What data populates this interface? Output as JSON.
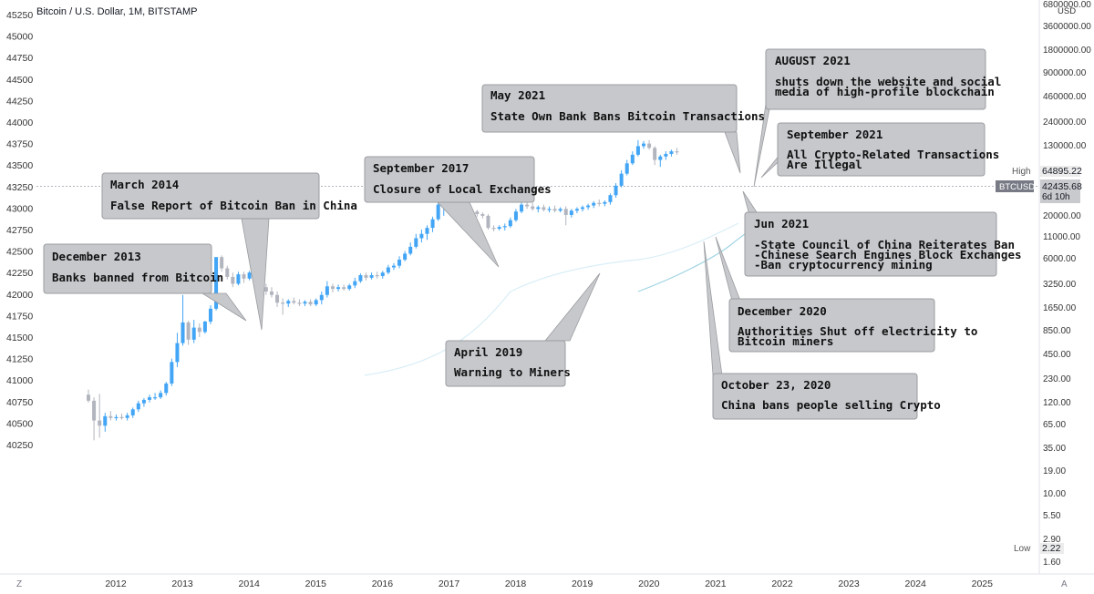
{
  "header": {
    "title": "Bitcoin / U.S. Dollar, 1M, BITSTAMP"
  },
  "chart_data": {
    "type": "candlestick",
    "title": "Bitcoin / U.S. Dollar, 1M, BITSTAMP",
    "symbol": "BTCUSD",
    "interval": "1M",
    "exchange": "BITSTAMP",
    "left_axis_ticks": [
      "45250",
      "45000",
      "44750",
      "44500",
      "44250",
      "44000",
      "43750",
      "43500",
      "43250",
      "43000",
      "42750",
      "42500",
      "42250",
      "42000",
      "41750",
      "41500",
      "41250",
      "41000",
      "40750",
      "40500",
      "40250"
    ],
    "right_axis_unit": "USD",
    "right_axis_ticks": [
      "6800000.00",
      "3600000.00",
      "1800000.00",
      "900000.00",
      "460000.00",
      "240000.00",
      "130000.00",
      "64895.22",
      "42435.68",
      "20000.00",
      "11000.00",
      "6000.00",
      "3250.00",
      "1650.00",
      "850.00",
      "450.00",
      "230.00",
      "120.00",
      "65.00",
      "35.00",
      "19.00",
      "10.00",
      "5.50",
      "2.90",
      "2.22",
      "1.60"
    ],
    "right_axis_scale": "log",
    "x_ticks": [
      "2012",
      "2013",
      "2014",
      "2015",
      "2016",
      "2017",
      "2018",
      "2019",
      "2020",
      "2021",
      "2022",
      "2023",
      "2024",
      "2025"
    ],
    "price_labels": {
      "high_label": "High",
      "high_value": "64895.22",
      "symbol_label": "BTCUSD",
      "last_value": "42435.68",
      "countdown": "6d 10h",
      "low_label": "Low",
      "low_value": "2.22"
    },
    "y_range_left": [
      40150,
      45350
    ],
    "grid": false,
    "candles": [
      {
        "o": 40830,
        "h": 40890,
        "l": 40740,
        "c": 40760
      },
      {
        "o": 40760,
        "h": 40800,
        "l": 40300,
        "c": 40530
      },
      {
        "o": 40530,
        "h": 40840,
        "l": 40330,
        "c": 40470
      },
      {
        "o": 40470,
        "h": 40620,
        "l": 40400,
        "c": 40580
      },
      {
        "o": 40580,
        "h": 40640,
        "l": 40530,
        "c": 40560
      },
      {
        "o": 40560,
        "h": 40600,
        "l": 40530,
        "c": 40570
      },
      {
        "o": 40570,
        "h": 40610,
        "l": 40540,
        "c": 40560
      },
      {
        "o": 40560,
        "h": 40620,
        "l": 40530,
        "c": 40590
      },
      {
        "o": 40590,
        "h": 40680,
        "l": 40560,
        "c": 40660
      },
      {
        "o": 40660,
        "h": 40760,
        "l": 40630,
        "c": 40730
      },
      {
        "o": 40730,
        "h": 40790,
        "l": 40690,
        "c": 40770
      },
      {
        "o": 40770,
        "h": 40830,
        "l": 40740,
        "c": 40800
      },
      {
        "o": 40800,
        "h": 40850,
        "l": 40770,
        "c": 40800
      },
      {
        "o": 40800,
        "h": 40880,
        "l": 40780,
        "c": 40850
      },
      {
        "o": 40850,
        "h": 40980,
        "l": 40820,
        "c": 40960
      },
      {
        "o": 40960,
        "h": 41250,
        "l": 40930,
        "c": 41210
      },
      {
        "o": 41210,
        "h": 41550,
        "l": 41150,
        "c": 41430
      },
      {
        "o": 41430,
        "h": 41990,
        "l": 41400,
        "c": 41670
      },
      {
        "o": 41670,
        "h": 41690,
        "l": 41410,
        "c": 41470
      },
      {
        "o": 41470,
        "h": 41700,
        "l": 41430,
        "c": 41610
      },
      {
        "o": 41610,
        "h": 41660,
        "l": 41500,
        "c": 41560
      },
      {
        "o": 41560,
        "h": 41690,
        "l": 41540,
        "c": 41680
      },
      {
        "o": 41680,
        "h": 41870,
        "l": 41650,
        "c": 41830
      },
      {
        "o": 41830,
        "h": 42430,
        "l": 41810,
        "c": 42430
      },
      {
        "o": 42430,
        "h": 42450,
        "l": 42260,
        "c": 42300
      },
      {
        "o": 42300,
        "h": 42330,
        "l": 42170,
        "c": 42200
      },
      {
        "o": 42200,
        "h": 42250,
        "l": 42080,
        "c": 42120
      },
      {
        "o": 42120,
        "h": 42260,
        "l": 42100,
        "c": 42230
      },
      {
        "o": 42230,
        "h": 42260,
        "l": 42130,
        "c": 42180
      },
      {
        "o": 42180,
        "h": 42270,
        "l": 42160,
        "c": 42250
      },
      {
        "o": 42250,
        "h": 42260,
        "l": 42130,
        "c": 42150
      },
      {
        "o": 42150,
        "h": 42200,
        "l": 42050,
        "c": 42080
      },
      {
        "o": 42080,
        "h": 42120,
        "l": 41990,
        "c": 42030
      },
      {
        "o": 42030,
        "h": 42080,
        "l": 41960,
        "c": 41990
      },
      {
        "o": 41990,
        "h": 42030,
        "l": 41850,
        "c": 41900
      },
      {
        "o": 41900,
        "h": 41950,
        "l": 41760,
        "c": 41890
      },
      {
        "o": 41890,
        "h": 41940,
        "l": 41850,
        "c": 41920
      },
      {
        "o": 41920,
        "h": 41960,
        "l": 41880,
        "c": 41900
      },
      {
        "o": 41900,
        "h": 41940,
        "l": 41860,
        "c": 41890
      },
      {
        "o": 41890,
        "h": 41930,
        "l": 41860,
        "c": 41910
      },
      {
        "o": 41910,
        "h": 41940,
        "l": 41860,
        "c": 41880
      },
      {
        "o": 41880,
        "h": 41950,
        "l": 41860,
        "c": 41930
      },
      {
        "o": 41930,
        "h": 42030,
        "l": 41880,
        "c": 41990
      },
      {
        "o": 41990,
        "h": 42150,
        "l": 41960,
        "c": 42090
      },
      {
        "o": 42090,
        "h": 42120,
        "l": 42020,
        "c": 42060
      },
      {
        "o": 42060,
        "h": 42110,
        "l": 42030,
        "c": 42080
      },
      {
        "o": 42080,
        "h": 42110,
        "l": 42040,
        "c": 42060
      },
      {
        "o": 42060,
        "h": 42120,
        "l": 42040,
        "c": 42100
      },
      {
        "o": 42100,
        "h": 42190,
        "l": 42070,
        "c": 42150
      },
      {
        "o": 42150,
        "h": 42240,
        "l": 42130,
        "c": 42220
      },
      {
        "o": 42220,
        "h": 42250,
        "l": 42160,
        "c": 42190
      },
      {
        "o": 42190,
        "h": 42250,
        "l": 42170,
        "c": 42220
      },
      {
        "o": 42220,
        "h": 42260,
        "l": 42180,
        "c": 42210
      },
      {
        "o": 42210,
        "h": 42270,
        "l": 42180,
        "c": 42250
      },
      {
        "o": 42250,
        "h": 42340,
        "l": 42230,
        "c": 42310
      },
      {
        "o": 42310,
        "h": 42360,
        "l": 42280,
        "c": 42330
      },
      {
        "o": 42330,
        "h": 42440,
        "l": 42300,
        "c": 42400
      },
      {
        "o": 42400,
        "h": 42500,
        "l": 42380,
        "c": 42470
      },
      {
        "o": 42470,
        "h": 42600,
        "l": 42450,
        "c": 42550
      },
      {
        "o": 42550,
        "h": 42700,
        "l": 42530,
        "c": 42650
      },
      {
        "o": 42650,
        "h": 42750,
        "l": 42600,
        "c": 42700
      },
      {
        "o": 42700,
        "h": 42800,
        "l": 42630,
        "c": 42770
      },
      {
        "o": 42770,
        "h": 42900,
        "l": 42720,
        "c": 42870
      },
      {
        "o": 42870,
        "h": 43100,
        "l": 42850,
        "c": 43040
      },
      {
        "o": 43040,
        "h": 43160,
        "l": 42910,
        "c": 43100
      },
      {
        "o": 43100,
        "h": 43140,
        "l": 42960,
        "c": 43000
      },
      {
        "o": 43000,
        "h": 43060,
        "l": 42930,
        "c": 42990
      },
      {
        "o": 42990,
        "h": 43050,
        "l": 42950,
        "c": 42980
      },
      {
        "o": 42980,
        "h": 43020,
        "l": 42930,
        "c": 42950
      },
      {
        "o": 42950,
        "h": 43000,
        "l": 42920,
        "c": 42960
      },
      {
        "o": 42960,
        "h": 42980,
        "l": 42900,
        "c": 42930
      },
      {
        "o": 42930,
        "h": 42950,
        "l": 42880,
        "c": 42910
      },
      {
        "o": 42910,
        "h": 42930,
        "l": 42750,
        "c": 42770
      },
      {
        "o": 42770,
        "h": 42800,
        "l": 42730,
        "c": 42760
      },
      {
        "o": 42760,
        "h": 42800,
        "l": 42740,
        "c": 42780
      },
      {
        "o": 42780,
        "h": 42820,
        "l": 42740,
        "c": 42790
      },
      {
        "o": 42790,
        "h": 42890,
        "l": 42770,
        "c": 42860
      },
      {
        "o": 42860,
        "h": 42990,
        "l": 42840,
        "c": 42960
      },
      {
        "o": 42960,
        "h": 43090,
        "l": 42940,
        "c": 43040
      },
      {
        "o": 43040,
        "h": 43100,
        "l": 42990,
        "c": 43020
      },
      {
        "o": 43020,
        "h": 43060,
        "l": 42970,
        "c": 42990
      },
      {
        "o": 42990,
        "h": 43030,
        "l": 42950,
        "c": 43010
      },
      {
        "o": 43010,
        "h": 43040,
        "l": 42960,
        "c": 42980
      },
      {
        "o": 42980,
        "h": 43020,
        "l": 42950,
        "c": 42990
      },
      {
        "o": 42990,
        "h": 43030,
        "l": 42950,
        "c": 42970
      },
      {
        "o": 42970,
        "h": 43010,
        "l": 42950,
        "c": 42990
      },
      {
        "o": 42990,
        "h": 43020,
        "l": 42800,
        "c": 42920
      },
      {
        "o": 42920,
        "h": 42990,
        "l": 42890,
        "c": 42970
      },
      {
        "o": 42970,
        "h": 43010,
        "l": 42940,
        "c": 42990
      },
      {
        "o": 42990,
        "h": 43030,
        "l": 42960,
        "c": 43010
      },
      {
        "o": 43010,
        "h": 43050,
        "l": 42980,
        "c": 43030
      },
      {
        "o": 43030,
        "h": 43080,
        "l": 43000,
        "c": 43060
      },
      {
        "o": 43060,
        "h": 43100,
        "l": 43020,
        "c": 43050
      },
      {
        "o": 43050,
        "h": 43090,
        "l": 43020,
        "c": 43070
      },
      {
        "o": 43070,
        "h": 43170,
        "l": 43040,
        "c": 43150
      },
      {
        "o": 43150,
        "h": 43290,
        "l": 43120,
        "c": 43260
      },
      {
        "o": 43260,
        "h": 43440,
        "l": 43240,
        "c": 43400
      },
      {
        "o": 43400,
        "h": 43560,
        "l": 43380,
        "c": 43520
      },
      {
        "o": 43520,
        "h": 43660,
        "l": 43500,
        "c": 43620
      },
      {
        "o": 43620,
        "h": 43790,
        "l": 43600,
        "c": 43720
      },
      {
        "o": 43720,
        "h": 43780,
        "l": 43690,
        "c": 43750
      },
      {
        "o": 43750,
        "h": 43790,
        "l": 43680,
        "c": 43700
      },
      {
        "o": 43700,
        "h": 43720,
        "l": 43500,
        "c": 43560
      },
      {
        "o": 43560,
        "h": 43620,
        "l": 43480,
        "c": 43600
      },
      {
        "o": 43600,
        "h": 43660,
        "l": 43560,
        "c": 43630
      },
      {
        "o": 43630,
        "h": 43680,
        "l": 43600,
        "c": 43660
      },
      {
        "o": 43660,
        "h": 43700,
        "l": 43620,
        "c": 43650
      }
    ],
    "annotations": [
      {
        "title": "December 2013",
        "lines": [
          "Banks banned from Bitcoin"
        ]
      },
      {
        "title": "March 2014",
        "lines": [
          "False Report of Bitcoin Ban in China"
        ]
      },
      {
        "title": "September 2017",
        "lines": [
          "Closure of Local Exchanges"
        ]
      },
      {
        "title": "April 2019",
        "lines": [
          "Warning to Miners"
        ]
      },
      {
        "title": "May 2021",
        "lines": [
          "State Own Bank Bans Bitcoin Transactions"
        ]
      },
      {
        "title": "AUGUST 2021",
        "lines": [
          "shuts down the website and social",
          "media of high-profile blockchain"
        ]
      },
      {
        "title": "September 2021",
        "lines": [
          "All Crypto-Related Transactions",
          "Are Illegal"
        ]
      },
      {
        "title": "Jun 2021",
        "lines": [
          "-State Council of China Reiterates Ban",
          "-Chinese Search Engines Block Exchanges",
          "-Ban cryptocurrency mining"
        ]
      },
      {
        "title": "December 2020",
        "lines": [
          "Authorities Shut off electricity to",
          "Bitcoin miners"
        ]
      },
      {
        "title": "October 23, 2020",
        "lines": [
          "China bans people selling Crypto"
        ]
      }
    ],
    "colors": {
      "up": "#42a5f5",
      "down": "#b2b5be",
      "ma1": "#d9eef7",
      "ma2": "#9fd4e3",
      "box": "#c6c8cc",
      "box_border": "#9a9ca0"
    }
  },
  "footer": {
    "left_label": "Z",
    "right_label": "A"
  }
}
